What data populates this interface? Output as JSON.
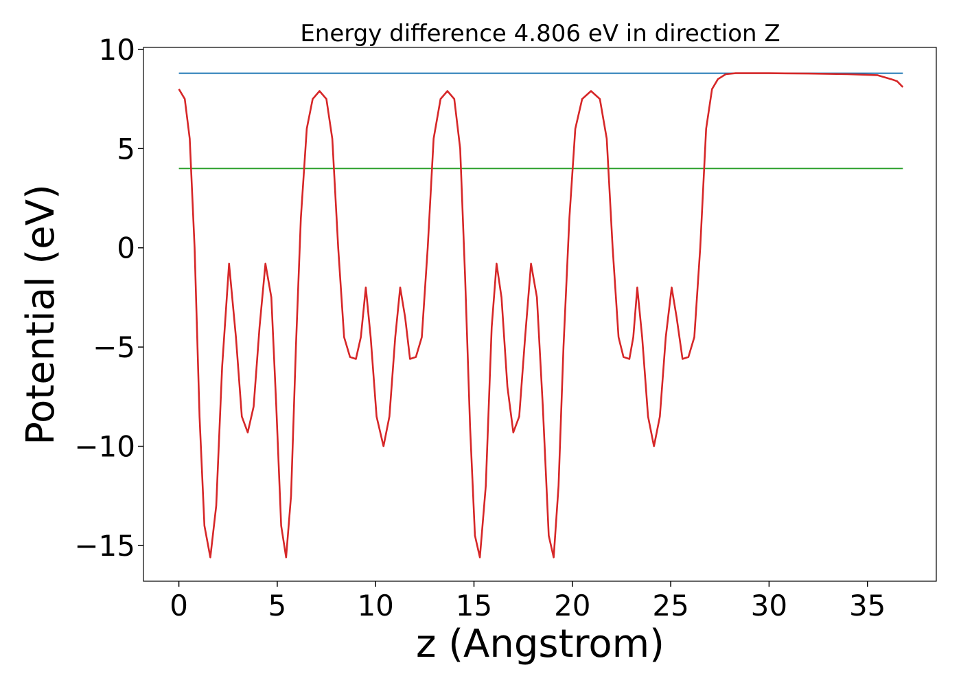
{
  "chart_data": {
    "type": "line",
    "title": "Energy difference 4.806 eV in direction Z",
    "xlabel": "z (Angstrom)",
    "ylabel": "Potential (eV)",
    "xlim": [
      -1.8,
      38.5
    ],
    "ylim": [
      -16.8,
      10.1
    ],
    "xticks": [
      0,
      5,
      10,
      15,
      20,
      25,
      30,
      35
    ],
    "xtick_labels": [
      "0",
      "5",
      "10",
      "15",
      "20",
      "25",
      "30",
      "35"
    ],
    "yticks": [
      10,
      5,
      0,
      -5,
      -10,
      -15
    ],
    "ytick_labels": [
      "10",
      "5",
      "0",
      "−5",
      "−10",
      "−15"
    ],
    "grid": false,
    "series": [
      {
        "color": "#1f77b4",
        "x": [
          0,
          36.8
        ],
        "values": [
          8.8,
          8.8
        ]
      },
      {
        "color": "#2ca02c",
        "x": [
          0,
          36.8
        ],
        "values": [
          4.0,
          4.0
        ]
      },
      {
        "color": "#d62728",
        "x": [
          0,
          0.3,
          0.55,
          0.8,
          1.05,
          1.3,
          1.6,
          1.9,
          2.2,
          2.55,
          2.9,
          3.2,
          3.5,
          3.8,
          4.1,
          4.4,
          4.7,
          4.95,
          5.2,
          5.45,
          5.7,
          5.95,
          6.2,
          6.5,
          6.8,
          7.15,
          7.5,
          7.8,
          8.1,
          8.4,
          8.7,
          9.0,
          9.25,
          9.5,
          9.75,
          10.05,
          10.4,
          10.7,
          11.0,
          11.25,
          11.5,
          11.75,
          12.05,
          12.35,
          12.65,
          12.95,
          13.3,
          13.65,
          14.0,
          14.3,
          14.55,
          14.8,
          15.05,
          15.3,
          15.6,
          15.9,
          16.15,
          16.4,
          16.7,
          17.0,
          17.3,
          17.6,
          17.9,
          18.2,
          18.5,
          18.8,
          19.05,
          19.3,
          19.55,
          19.85,
          20.15,
          20.5,
          20.95,
          21.4,
          21.75,
          22.05,
          22.35,
          22.6,
          22.9,
          23.1,
          23.3,
          23.55,
          23.85,
          24.15,
          24.45,
          24.75,
          25.05,
          25.3,
          25.6,
          25.9,
          26.2,
          26.5,
          26.8,
          27.1,
          27.4,
          27.8,
          28.3,
          29.0,
          30.0,
          32.0,
          34.0,
          35.5,
          36.2,
          36.5,
          36.8
        ],
        "values": [
          8.0,
          7.5,
          5.5,
          0.0,
          -8.5,
          -14.0,
          -15.6,
          -13.0,
          -6.0,
          -0.8,
          -4.5,
          -8.5,
          -9.3,
          -8.0,
          -4.0,
          -0.8,
          -2.5,
          -8.0,
          -14.0,
          -15.6,
          -12.5,
          -5.0,
          1.5,
          6.0,
          7.5,
          7.9,
          7.5,
          5.5,
          0.0,
          -4.5,
          -5.5,
          -5.6,
          -4.5,
          -2.0,
          -4.5,
          -8.5,
          -10.0,
          -8.5,
          -4.5,
          -2.0,
          -3.5,
          -5.6,
          -5.5,
          -4.5,
          0.0,
          5.5,
          7.5,
          7.9,
          7.5,
          5.0,
          -1.5,
          -9.0,
          -14.5,
          -15.6,
          -12.0,
          -4.0,
          -0.8,
          -2.5,
          -7.0,
          -9.3,
          -8.5,
          -4.5,
          -0.8,
          -2.5,
          -8.0,
          -14.5,
          -15.6,
          -12.0,
          -5.0,
          1.5,
          6.0,
          7.5,
          7.9,
          7.5,
          5.5,
          0.0,
          -4.5,
          -5.5,
          -5.6,
          -4.5,
          -2.0,
          -4.5,
          -8.5,
          -10.0,
          -8.5,
          -4.5,
          -2.0,
          -3.5,
          -5.6,
          -5.5,
          -4.5,
          0.0,
          6.0,
          8.0,
          8.5,
          8.75,
          8.8,
          8.8,
          8.8,
          8.78,
          8.75,
          8.7,
          8.5,
          8.4,
          8.1
        ]
      }
    ]
  }
}
